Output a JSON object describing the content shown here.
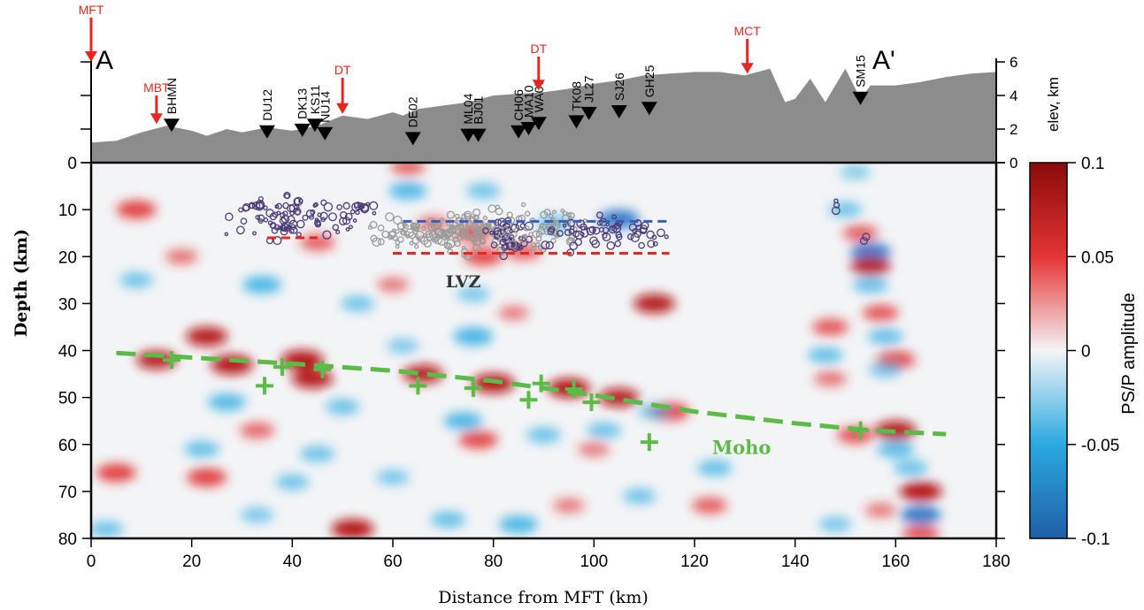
{
  "chart_data": {
    "type": "heatmap",
    "title": "",
    "section": {
      "start_label": "A",
      "end_label": "A'"
    },
    "xlabel": "Distance from MFT (km)",
    "ylabel": "Depth (km)",
    "xlim": [
      0,
      180
    ],
    "ylim": [
      80,
      0
    ],
    "x_ticks": [
      0,
      20,
      40,
      60,
      80,
      100,
      120,
      140,
      160,
      180
    ],
    "y_ticks": [
      0,
      10,
      20,
      30,
      40,
      50,
      60,
      70,
      80
    ],
    "elevation_axis": {
      "label": "elev, km",
      "ticks": [
        0,
        2,
        4,
        6
      ],
      "range": [
        0,
        6
      ]
    },
    "colorbar": {
      "label": "PS/P amplitude",
      "ticks": [
        "0.1",
        "0.05",
        "0",
        "-0.05",
        "-0.1"
      ],
      "range": [
        -0.1,
        0.1
      ],
      "colors": {
        "positive": "#8b0a0a",
        "mid": "#f3f4f6",
        "negative": "#1f5fa8"
      }
    },
    "topography": [
      [
        0,
        1.2
      ],
      [
        5,
        1.3
      ],
      [
        10,
        1.8
      ],
      [
        15,
        2.2
      ],
      [
        20,
        1.9
      ],
      [
        23,
        1.6
      ],
      [
        27,
        2.0
      ],
      [
        30,
        1.8
      ],
      [
        35,
        2.1
      ],
      [
        40,
        1.9
      ],
      [
        45,
        2.2
      ],
      [
        50,
        2.8
      ],
      [
        55,
        2.6
      ],
      [
        60,
        3.0
      ],
      [
        62,
        2.8
      ],
      [
        65,
        3.2
      ],
      [
        70,
        3.4
      ],
      [
        75,
        3.6
      ],
      [
        80,
        4.0
      ],
      [
        85,
        4.1
      ],
      [
        90,
        4.2
      ],
      [
        95,
        4.4
      ],
      [
        100,
        4.7
      ],
      [
        105,
        4.9
      ],
      [
        110,
        5.2
      ],
      [
        115,
        5.3
      ],
      [
        120,
        5.4
      ],
      [
        125,
        5.4
      ],
      [
        130,
        5.2
      ],
      [
        135,
        5.6
      ],
      [
        138,
        3.6
      ],
      [
        140,
        3.8
      ],
      [
        143,
        5.0
      ],
      [
        146,
        3.6
      ],
      [
        148,
        4.6
      ],
      [
        150,
        5.6
      ],
      [
        153,
        3.8
      ],
      [
        155,
        4.6
      ],
      [
        160,
        4.6
      ],
      [
        165,
        4.8
      ],
      [
        170,
        5.1
      ],
      [
        175,
        5.3
      ],
      [
        180,
        5.4
      ]
    ],
    "stations": [
      {
        "name": "BHMN",
        "x": 16,
        "elev": 2.2
      },
      {
        "name": "DU12",
        "x": 35,
        "elev": 1.8
      },
      {
        "name": "DK13",
        "x": 42,
        "elev": 1.9
      },
      {
        "name": "KS11",
        "x": 44.5,
        "elev": 2.2
      },
      {
        "name": "NU14",
        "x": 46.5,
        "elev": 1.7
      },
      {
        "name": "DE02",
        "x": 64,
        "elev": 1.4
      },
      {
        "name": "ML04",
        "x": 75,
        "elev": 1.6
      },
      {
        "name": "BJ01",
        "x": 77,
        "elev": 1.6
      },
      {
        "name": "CH06",
        "x": 85,
        "elev": 1.8
      },
      {
        "name": "MA10",
        "x": 87,
        "elev": 2.0
      },
      {
        "name": "WA07",
        "x": 89,
        "elev": 2.3
      },
      {
        "name": "TK08",
        "x": 96.5,
        "elev": 2.4
      },
      {
        "name": "JL27",
        "x": 99,
        "elev": 2.9
      },
      {
        "name": "SJ26",
        "x": 105,
        "elev": 3.0
      },
      {
        "name": "GH25",
        "x": 111,
        "elev": 3.2
      },
      {
        "name": "SM15",
        "x": 153,
        "elev": 3.8
      }
    ],
    "faults": [
      {
        "name": "MFT",
        "x": 0
      },
      {
        "name": "MBT",
        "x": 13
      },
      {
        "name": "DT",
        "x": 50
      },
      {
        "name": "DT",
        "x": 89
      },
      {
        "name": "MCT",
        "x": 130.5
      }
    ],
    "annotations": {
      "lvz": "LVZ",
      "moho": "Moho"
    },
    "moho_line": [
      [
        5,
        40.5
      ],
      [
        20,
        41.5
      ],
      [
        40,
        42.8
      ],
      [
        60,
        44.3
      ],
      [
        80,
        46.5
      ],
      [
        100,
        49.5
      ],
      [
        120,
        53
      ],
      [
        140,
        55.5
      ],
      [
        155,
        57
      ],
      [
        170,
        57.8
      ]
    ],
    "moho_picks": [
      [
        16,
        42
      ],
      [
        38,
        43.5
      ],
      [
        46,
        44
      ],
      [
        34.5,
        47.5
      ],
      [
        65,
        47.5
      ],
      [
        76,
        48
      ],
      [
        87,
        50.5
      ],
      [
        89.5,
        47
      ],
      [
        96,
        48.2
      ],
      [
        99.5,
        51
      ],
      [
        111,
        59.5
      ],
      [
        153,
        57
      ]
    ],
    "lvz_top": [
      {
        "x0": 35,
        "x1": 45,
        "depth": 16
      },
      {
        "x0": 62,
        "x1": 115,
        "depth": 12.5
      }
    ],
    "lvz_base": [
      {
        "x0": 60,
        "x1": 115,
        "depth": 19.3
      }
    ],
    "amplitude_blobs": [
      {
        "x": 9,
        "z": 10,
        "v": 0.85
      },
      {
        "x": 18,
        "z": 20,
        "v": 0.45
      },
      {
        "x": 9,
        "z": 25,
        "v": -0.5
      },
      {
        "x": 23,
        "z": 37,
        "v": 0.95
      },
      {
        "x": 13,
        "z": 42,
        "v": 0.9
      },
      {
        "x": 28,
        "z": 43,
        "v": 1
      },
      {
        "x": 42,
        "z": 42,
        "v": 1
      },
      {
        "x": 44,
        "z": 46,
        "v": 0.95
      },
      {
        "x": 34,
        "z": 26,
        "v": -0.8
      },
      {
        "x": 45,
        "z": 17,
        "v": 0.6
      },
      {
        "x": 53,
        "z": 30,
        "v": -0.5
      },
      {
        "x": 60,
        "z": 26,
        "v": 0.4
      },
      {
        "x": 27,
        "z": 51,
        "v": -0.75
      },
      {
        "x": 50,
        "z": 52,
        "v": -0.55
      },
      {
        "x": 33,
        "z": 57,
        "v": 0.55
      },
      {
        "x": 22,
        "z": 61,
        "v": -0.6
      },
      {
        "x": 45,
        "z": 62,
        "v": -0.55
      },
      {
        "x": 5,
        "z": 66,
        "v": 0.85
      },
      {
        "x": 23,
        "z": 67,
        "v": 0.85
      },
      {
        "x": 40,
        "z": 68,
        "v": -0.5
      },
      {
        "x": 60,
        "z": 67,
        "v": -0.45
      },
      {
        "x": 52,
        "z": 78,
        "v": 1
      },
      {
        "x": 71,
        "z": 76,
        "v": -0.6
      },
      {
        "x": 85,
        "z": 77,
        "v": -0.8
      },
      {
        "x": 3,
        "z": 78,
        "v": -0.55
      },
      {
        "x": 33,
        "z": 75,
        "v": -0.45
      },
      {
        "x": 95,
        "z": 73,
        "v": 0.4
      },
      {
        "x": 66,
        "z": 45,
        "v": 0.9
      },
      {
        "x": 80,
        "z": 47,
        "v": 1
      },
      {
        "x": 95,
        "z": 48,
        "v": 1
      },
      {
        "x": 105,
        "z": 50,
        "v": 0.9
      },
      {
        "x": 115,
        "z": 53,
        "v": 0.85
      },
      {
        "x": 76,
        "z": 37,
        "v": -0.85
      },
      {
        "x": 76,
        "z": 28,
        "v": -0.45
      },
      {
        "x": 74,
        "z": 55,
        "v": -0.8
      },
      {
        "x": 77,
        "z": 59,
        "v": 0.8
      },
      {
        "x": 100,
        "z": 61,
        "v": 0.4
      },
      {
        "x": 90,
        "z": 58,
        "v": -0.55
      },
      {
        "x": 102,
        "z": 57,
        "v": -0.55
      },
      {
        "x": 112,
        "z": 30,
        "v": 0.95
      },
      {
        "x": 124,
        "z": 65,
        "v": -0.6
      },
      {
        "x": 109,
        "z": 71,
        "v": -0.5
      },
      {
        "x": 123,
        "z": 73,
        "v": 0.6
      },
      {
        "x": 112,
        "z": 53,
        "v": -0.45
      },
      {
        "x": 63,
        "z": 1,
        "v": 0.55
      },
      {
        "x": 63,
        "z": 6,
        "v": -0.75
      },
      {
        "x": 78,
        "z": 6,
        "v": -0.5
      },
      {
        "x": 105,
        "z": 12,
        "v": -0.9
      },
      {
        "x": 76,
        "z": 15,
        "v": 0.75
      },
      {
        "x": 86,
        "z": 19,
        "v": 0.6
      },
      {
        "x": 92,
        "z": 13,
        "v": -0.6
      },
      {
        "x": 68,
        "z": 13,
        "v": 0.45
      },
      {
        "x": 78,
        "z": 20,
        "v": 0.8
      },
      {
        "x": 62,
        "z": 39,
        "v": -0.4
      },
      {
        "x": 84,
        "z": 32,
        "v": 0.35
      },
      {
        "x": 150,
        "z": 10,
        "v": -0.5
      },
      {
        "x": 152,
        "z": 2,
        "v": -0.35
      },
      {
        "x": 153,
        "z": 15,
        "v": 0.6
      },
      {
        "x": 155,
        "z": 19,
        "v": -0.9
      },
      {
        "x": 155,
        "z": 22,
        "v": 0.9
      },
      {
        "x": 155,
        "z": 26,
        "v": -0.6
      },
      {
        "x": 157,
        "z": 32,
        "v": 0.65
      },
      {
        "x": 158,
        "z": 37,
        "v": -0.6
      },
      {
        "x": 160,
        "z": 42,
        "v": 0.8
      },
      {
        "x": 158,
        "z": 44,
        "v": -0.5
      },
      {
        "x": 147,
        "z": 35,
        "v": 0.65
      },
      {
        "x": 146,
        "z": 41,
        "v": -0.6
      },
      {
        "x": 147,
        "z": 46,
        "v": 0.45
      },
      {
        "x": 160,
        "z": 57,
        "v": 0.95
      },
      {
        "x": 152,
        "z": 58,
        "v": 0.7
      },
      {
        "x": 160,
        "z": 61,
        "v": -0.7
      },
      {
        "x": 163,
        "z": 65,
        "v": -0.55
      },
      {
        "x": 165,
        "z": 70,
        "v": 1
      },
      {
        "x": 165,
        "z": 75,
        "v": -0.9
      },
      {
        "x": 165,
        "z": 79,
        "v": 0.7
      },
      {
        "x": 148,
        "z": 77,
        "v": -0.45
      },
      {
        "x": 157,
        "z": 74,
        "v": 0.4
      }
    ],
    "seismicity": {
      "clusters": [
        {
          "cx": 41,
          "cz": 12,
          "sx": 8,
          "sz": 3,
          "n": 90,
          "color": "#4b3b78"
        },
        {
          "cx": 53,
          "cz": 10,
          "sx": 3,
          "sz": 1.5,
          "n": 15,
          "color": "#4b3b78"
        },
        {
          "cx": 65,
          "cz": 15,
          "sx": 6,
          "sz": 2,
          "n": 70,
          "color": "#9a9a9a"
        },
        {
          "cx": 76,
          "cz": 15,
          "sx": 6,
          "sz": 3,
          "n": 90,
          "color": "#9a9a9a"
        },
        {
          "cx": 83,
          "cz": 16,
          "sx": 3,
          "sz": 3,
          "n": 40,
          "color": "#4b3b78"
        },
        {
          "cx": 90,
          "cz": 14,
          "sx": 6,
          "sz": 3,
          "n": 60,
          "color": "#9a9a9a"
        },
        {
          "cx": 100,
          "cz": 15,
          "sx": 6,
          "sz": 2.5,
          "n": 45,
          "color": "#4b3b78"
        },
        {
          "cx": 110,
          "cz": 15,
          "sx": 3,
          "sz": 2,
          "n": 15,
          "color": "#4b3b78"
        },
        {
          "cx": 148,
          "cz": 9,
          "sx": 0.5,
          "sz": 1,
          "n": 3,
          "color": "#4b3b78"
        },
        {
          "cx": 154,
          "cz": 16.5,
          "sx": 0.4,
          "sz": 0.5,
          "n": 2,
          "color": "#4b3b78"
        }
      ]
    }
  }
}
